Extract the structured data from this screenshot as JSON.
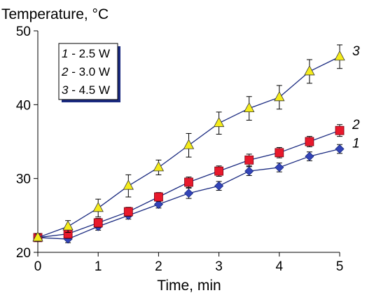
{
  "chart_data": {
    "type": "line",
    "ylabel": "Temperature, °C",
    "xlabel": "Time, min",
    "xlim": [
      0,
      5
    ],
    "ylim": [
      20,
      50
    ],
    "x_ticks": [
      0,
      1,
      2,
      3,
      4,
      5
    ],
    "y_ticks": [
      20,
      30,
      40,
      50
    ],
    "grid": false,
    "legend_position": "top-left",
    "legend": [
      {
        "num": "1",
        "text": "- 2.5 W"
      },
      {
        "num": "2",
        "text": "- 3.0 W"
      },
      {
        "num": "3",
        "text": "- 4.5 W"
      }
    ],
    "series": [
      {
        "end_label": "1",
        "marker": "diamond",
        "color": "#3344b8",
        "x": [
          0,
          0.5,
          1,
          1.5,
          2,
          2.5,
          3,
          3.5,
          4,
          4.5,
          5
        ],
        "y": [
          22,
          21.8,
          23.5,
          25,
          26.5,
          28,
          29,
          31,
          31.5,
          33,
          34
        ],
        "err": [
          0.5,
          0.5,
          0.5,
          0.5,
          0.5,
          0.7,
          0.6,
          0.6,
          0.6,
          0.6,
          0.6
        ]
      },
      {
        "end_label": "2",
        "marker": "square",
        "color": "#e8192c",
        "x": [
          0,
          0.5,
          1,
          1.5,
          2,
          2.5,
          3,
          3.5,
          4,
          4.5,
          5
        ],
        "y": [
          22,
          22.5,
          24,
          25.5,
          27.5,
          29.5,
          31,
          32.5,
          33.5,
          35,
          36.5
        ],
        "err": [
          0.5,
          0.6,
          0.6,
          0.6,
          0.6,
          0.7,
          0.7,
          0.8,
          0.7,
          0.7,
          0.8
        ]
      },
      {
        "end_label": "3",
        "marker": "triangle",
        "color": "#f5ec1a",
        "x": [
          0,
          0.5,
          1,
          1.5,
          2,
          2.5,
          3,
          3.5,
          4,
          4.5,
          5
        ],
        "y": [
          22,
          23.5,
          26,
          29,
          31.5,
          34.5,
          37.5,
          39.5,
          41,
          44.5,
          46.5
        ],
        "err": [
          0.5,
          0.8,
          1.2,
          1.5,
          1.0,
          1.6,
          1.5,
          1.6,
          1.6,
          1.6,
          1.6
        ]
      }
    ]
  }
}
